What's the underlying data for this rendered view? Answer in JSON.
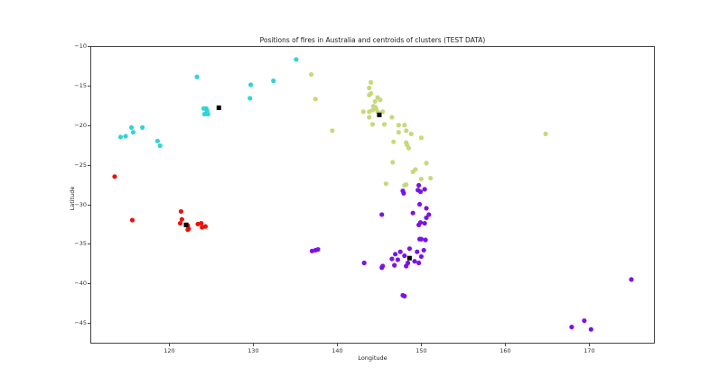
{
  "chart_data": {
    "type": "scatter",
    "title": "Positions of fires in Australia and centroids of clusters (TEST DATA)",
    "xlabel": "Longitude",
    "ylabel": "Latitude",
    "xlim": [
      110.6,
      177.8
    ],
    "ylim": [
      -47.6,
      -10
    ],
    "xticks": [
      120,
      130,
      140,
      150,
      160,
      170
    ],
    "yticks": [
      -10,
      -15,
      -20,
      -25,
      -30,
      -35,
      -40,
      -45
    ],
    "grid": false,
    "legend": null,
    "series": [
      {
        "name": "cluster-cyan",
        "color": "#2fd4d8",
        "points": [
          [
            114.2,
            -21.5
          ],
          [
            114.8,
            -21.4
          ],
          [
            115.5,
            -20.3
          ],
          [
            115.7,
            -20.9
          ],
          [
            116.8,
            -20.3
          ],
          [
            118.6,
            -22.0
          ],
          [
            118.9,
            -22.6
          ],
          [
            123.3,
            -13.9
          ],
          [
            124.1,
            -17.9
          ],
          [
            124.5,
            -18.2
          ],
          [
            124.6,
            -18.6
          ],
          [
            129.7,
            -14.9
          ],
          [
            129.6,
            -16.6
          ],
          [
            132.4,
            -14.4
          ],
          [
            135.1,
            -11.7
          ],
          [
            124.2,
            -18.6
          ],
          [
            124.4,
            -17.9
          ]
        ]
      },
      {
        "name": "cluster-yellowgreen",
        "color": "#c8d87a",
        "points": [
          [
            136.9,
            -13.6
          ],
          [
            137.4,
            -16.7
          ],
          [
            139.4,
            -20.7
          ],
          [
            144.0,
            -14.6
          ],
          [
            143.8,
            -15.3
          ],
          [
            144.0,
            -16.0
          ],
          [
            143.8,
            -16.2
          ],
          [
            144.5,
            -17.0
          ],
          [
            144.8,
            -16.5
          ],
          [
            145.1,
            -16.8
          ],
          [
            144.5,
            -17.7
          ],
          [
            144.2,
            -18.1
          ],
          [
            143.8,
            -18.3
          ],
          [
            144.3,
            -17.6
          ],
          [
            144.6,
            -17.9
          ],
          [
            144.8,
            -18.3
          ],
          [
            143.1,
            -18.3
          ],
          [
            145.4,
            -18.3
          ],
          [
            143.8,
            -19.0
          ],
          [
            144.2,
            -19.9
          ],
          [
            145.6,
            -19.9
          ],
          [
            146.5,
            -19.0
          ],
          [
            147.3,
            -20.0
          ],
          [
            148.0,
            -20.0
          ],
          [
            148.2,
            -20.7
          ],
          [
            147.3,
            -20.9
          ],
          [
            148.8,
            -21.1
          ],
          [
            146.7,
            -22.1
          ],
          [
            148.2,
            -22.2
          ],
          [
            150.0,
            -21.6
          ],
          [
            148.3,
            -22.5
          ],
          [
            148.5,
            -22.9
          ],
          [
            146.6,
            -24.7
          ],
          [
            149.3,
            -25.6
          ],
          [
            149.0,
            -25.9
          ],
          [
            150.6,
            -24.8
          ],
          [
            150.0,
            -26.8
          ],
          [
            151.1,
            -26.7
          ],
          [
            145.8,
            -27.4
          ],
          [
            148.0,
            -27.6
          ],
          [
            148.2,
            -27.5
          ],
          [
            164.8,
            -21.1
          ]
        ]
      },
      {
        "name": "cluster-red",
        "color": "#e8130e",
        "points": [
          [
            113.5,
            -26.5
          ],
          [
            115.6,
            -32.0
          ],
          [
            121.4,
            -30.9
          ],
          [
            121.5,
            -31.9
          ],
          [
            121.3,
            -32.4
          ],
          [
            122.2,
            -32.7
          ],
          [
            122.3,
            -33.1
          ],
          [
            122.2,
            -33.2
          ],
          [
            123.4,
            -32.5
          ],
          [
            123.8,
            -32.4
          ],
          [
            123.9,
            -32.9
          ],
          [
            124.3,
            -32.8
          ],
          [
            122.0,
            -32.6
          ]
        ]
      },
      {
        "name": "cluster-purple",
        "color": "#7b12e8",
        "points": [
          [
            147.8,
            -28.3
          ],
          [
            147.9,
            -28.6
          ],
          [
            149.7,
            -27.6
          ],
          [
            149.6,
            -28.2
          ],
          [
            149.9,
            -28.4
          ],
          [
            150.4,
            -28.1
          ],
          [
            149.8,
            -30.0
          ],
          [
            150.6,
            -30.5
          ],
          [
            150.9,
            -31.3
          ],
          [
            150.6,
            -31.7
          ],
          [
            149.0,
            -31.1
          ],
          [
            145.3,
            -31.3
          ],
          [
            149.7,
            -32.6
          ],
          [
            149.9,
            -32.3
          ],
          [
            150.4,
            -32.4
          ],
          [
            149.8,
            -34.4
          ],
          [
            150.0,
            -34.4
          ],
          [
            150.5,
            -34.5
          ],
          [
            137.0,
            -35.9
          ],
          [
            137.4,
            -35.8
          ],
          [
            137.7,
            -35.7
          ],
          [
            143.2,
            -37.4
          ],
          [
            145.3,
            -38.0
          ],
          [
            145.4,
            -37.8
          ],
          [
            146.8,
            -37.7
          ],
          [
            147.8,
            -41.5
          ],
          [
            148.0,
            -41.6
          ],
          [
            146.5,
            -36.9
          ],
          [
            147.5,
            -36.0
          ],
          [
            148.0,
            -36.5
          ],
          [
            148.6,
            -35.6
          ],
          [
            149.5,
            -36.0
          ],
          [
            150.0,
            -36.6
          ],
          [
            149.2,
            -37.2
          ],
          [
            148.4,
            -37.4
          ],
          [
            147.2,
            -37.0
          ],
          [
            146.9,
            -36.3
          ],
          [
            148.2,
            -37.8
          ],
          [
            149.7,
            -37.4
          ],
          [
            150.3,
            -35.8
          ],
          [
            175.0,
            -39.5
          ],
          [
            167.9,
            -45.5
          ],
          [
            169.4,
            -44.7
          ],
          [
            170.2,
            -45.8
          ]
        ]
      }
    ],
    "centroids": {
      "color": "#000000",
      "marker": "square",
      "points": [
        [
          125.9,
          -17.8
        ],
        [
          145.0,
          -18.7
        ],
        [
          122.0,
          -32.6
        ],
        [
          148.6,
          -36.8
        ]
      ]
    }
  }
}
